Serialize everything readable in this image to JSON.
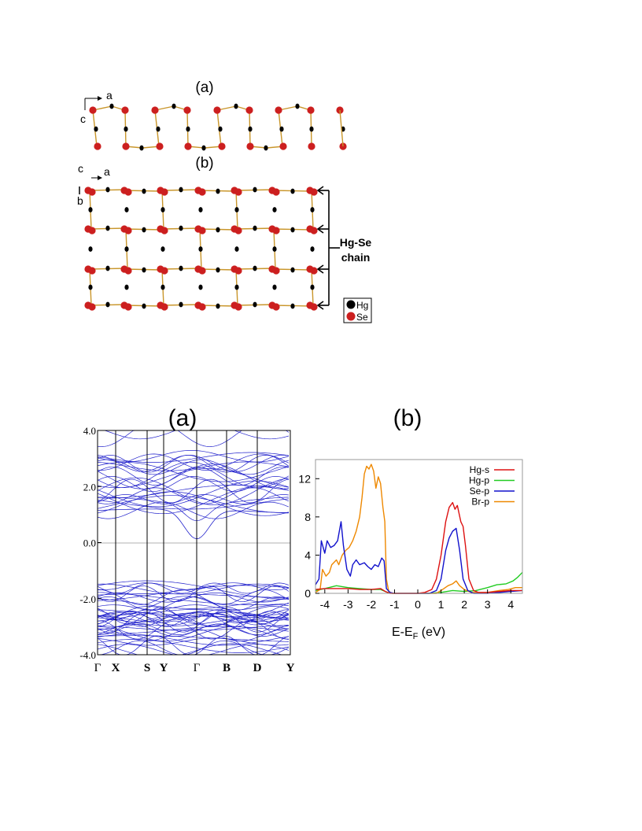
{
  "colors": {
    "hg_atom": "#000000",
    "se_atom": "#cc1f1f",
    "bond": "#c9962b",
    "band_line": "#2222cc"
  },
  "structure_figure": {
    "panel_a_label": "(a)",
    "panel_b_label": "(b)",
    "axes_a": {
      "horizontal": "a",
      "vertical": "c"
    },
    "axes_b": {
      "out_of_plane": "c",
      "horizontal": "a",
      "vertical": "b"
    },
    "chain_annotation_line1": "Hg-Se",
    "chain_annotation_line2": "chain",
    "legend": [
      {
        "label": "Hg",
        "color": "#000000"
      },
      {
        "label": "Se",
        "color": "#cc1f1f"
      }
    ]
  },
  "chart_data": [
    {
      "type": "line",
      "title": "(a)",
      "ylim": [
        -4.0,
        4.0
      ],
      "y_ticks": [
        "4.0",
        "2.0",
        "0.0",
        "-2.0",
        "-4.0"
      ],
      "x_ticks": [
        "Γ",
        "X",
        "S",
        "Y",
        "Γ",
        "B",
        "D",
        "Y"
      ],
      "fermi_level": 0.0,
      "conduction_band_range": [
        0.0,
        4.0
      ],
      "valence_band_range": [
        -4.0,
        -1.4
      ],
      "grid": false
    },
    {
      "type": "line",
      "title": "(b)",
      "xlabel": "E-E",
      "xlabel_sub": "F",
      "xlabel_unit": " (eV)",
      "xlim": [
        -4.4,
        4.5
      ],
      "ylim": [
        0,
        14
      ],
      "x_ticks": [
        "-4",
        "-3",
        "-2",
        "-1",
        "0",
        "1",
        "2",
        "3",
        "4"
      ],
      "y_ticks": [
        "0",
        "4",
        "8",
        "12"
      ],
      "legend_position": "top-right",
      "series": [
        {
          "name": "Hg-s",
          "color": "#dd1111",
          "points": [
            [
              -4.4,
              0.4
            ],
            [
              -4.0,
              0.5
            ],
            [
              -3.5,
              0.5
            ],
            [
              -3.0,
              0.5
            ],
            [
              -2.5,
              0.4
            ],
            [
              -2.0,
              0.4
            ],
            [
              -1.6,
              0.5
            ],
            [
              -1.4,
              0.2
            ],
            [
              -1.2,
              0.0
            ],
            [
              0.0,
              0.0
            ],
            [
              0.3,
              0.1
            ],
            [
              0.6,
              0.4
            ],
            [
              0.8,
              1.5
            ],
            [
              1.0,
              4.0
            ],
            [
              1.2,
              7.5
            ],
            [
              1.35,
              9.0
            ],
            [
              1.5,
              9.5
            ],
            [
              1.6,
              8.8
            ],
            [
              1.7,
              9.2
            ],
            [
              1.85,
              7.5
            ],
            [
              1.95,
              7.0
            ],
            [
              2.05,
              5.0
            ],
            [
              2.2,
              1.5
            ],
            [
              2.4,
              0.3
            ],
            [
              2.6,
              0.1
            ],
            [
              3.0,
              0.1
            ],
            [
              3.5,
              0.2
            ],
            [
              4.0,
              0.3
            ],
            [
              4.5,
              0.3
            ]
          ]
        },
        {
          "name": "Hg-p",
          "color": "#22cc22",
          "points": [
            [
              -4.4,
              0.3
            ],
            [
              -4.0,
              0.5
            ],
            [
              -3.5,
              0.8
            ],
            [
              -3.0,
              0.6
            ],
            [
              -2.5,
              0.5
            ],
            [
              -2.0,
              0.4
            ],
            [
              -1.6,
              0.4
            ],
            [
              -1.3,
              0.1
            ],
            [
              -1.1,
              0.0
            ],
            [
              0.5,
              0.0
            ],
            [
              1.0,
              0.1
            ],
            [
              1.5,
              0.3
            ],
            [
              2.0,
              0.2
            ],
            [
              2.5,
              0.3
            ],
            [
              3.0,
              0.6
            ],
            [
              3.4,
              0.9
            ],
            [
              3.8,
              1.0
            ],
            [
              4.1,
              1.3
            ],
            [
              4.3,
              1.7
            ],
            [
              4.5,
              2.2
            ]
          ]
        },
        {
          "name": "Se-p",
          "color": "#1111cc",
          "points": [
            [
              -4.4,
              0.9
            ],
            [
              -4.25,
              1.5
            ],
            [
              -4.15,
              5.5
            ],
            [
              -4.0,
              4.2
            ],
            [
              -3.9,
              5.5
            ],
            [
              -3.75,
              4.8
            ],
            [
              -3.6,
              5.0
            ],
            [
              -3.45,
              5.5
            ],
            [
              -3.3,
              7.5
            ],
            [
              -3.2,
              5.0
            ],
            [
              -3.05,
              2.5
            ],
            [
              -2.9,
              1.8
            ],
            [
              -2.8,
              3.0
            ],
            [
              -2.65,
              3.5
            ],
            [
              -2.5,
              3.0
            ],
            [
              -2.3,
              3.2
            ],
            [
              -2.15,
              2.8
            ],
            [
              -2.0,
              2.5
            ],
            [
              -1.85,
              3.0
            ],
            [
              -1.7,
              2.8
            ],
            [
              -1.55,
              3.7
            ],
            [
              -1.45,
              3.4
            ],
            [
              -1.35,
              0.5
            ],
            [
              -1.2,
              0.1
            ],
            [
              -1.0,
              0.0
            ],
            [
              0.5,
              0.0
            ],
            [
              0.8,
              0.3
            ],
            [
              1.0,
              1.5
            ],
            [
              1.2,
              4.5
            ],
            [
              1.35,
              5.8
            ],
            [
              1.5,
              6.5
            ],
            [
              1.65,
              6.8
            ],
            [
              1.8,
              4.5
            ],
            [
              1.95,
              1.5
            ],
            [
              2.15,
              0.3
            ],
            [
              2.4,
              0.0
            ],
            [
              3.0,
              0.0
            ],
            [
              3.5,
              0.1
            ],
            [
              4.0,
              0.2
            ],
            [
              4.5,
              0.3
            ]
          ]
        },
        {
          "name": "Br-p",
          "color": "#ee8800",
          "points": [
            [
              -4.4,
              0.1
            ],
            [
              -4.2,
              0.4
            ],
            [
              -4.1,
              2.5
            ],
            [
              -3.95,
              1.8
            ],
            [
              -3.8,
              2.2
            ],
            [
              -3.7,
              3.0
            ],
            [
              -3.5,
              3.5
            ],
            [
              -3.4,
              3.0
            ],
            [
              -3.25,
              4.0
            ],
            [
              -3.1,
              4.5
            ],
            [
              -2.95,
              4.8
            ],
            [
              -2.8,
              5.5
            ],
            [
              -2.65,
              6.5
            ],
            [
              -2.5,
              8.0
            ],
            [
              -2.4,
              10.0
            ],
            [
              -2.3,
              12.5
            ],
            [
              -2.2,
              13.3
            ],
            [
              -2.1,
              13.0
            ],
            [
              -2.0,
              13.5
            ],
            [
              -1.9,
              12.8
            ],
            [
              -1.8,
              11.0
            ],
            [
              -1.7,
              12.2
            ],
            [
              -1.6,
              11.5
            ],
            [
              -1.5,
              9.0
            ],
            [
              -1.42,
              7.5
            ],
            [
              -1.35,
              1.5
            ],
            [
              -1.25,
              0.2
            ],
            [
              -1.1,
              0.0
            ],
            [
              0.8,
              0.0
            ],
            [
              1.0,
              0.3
            ],
            [
              1.3,
              0.8
            ],
            [
              1.5,
              1.0
            ],
            [
              1.65,
              1.3
            ],
            [
              1.8,
              0.8
            ],
            [
              2.0,
              0.4
            ],
            [
              2.3,
              0.1
            ],
            [
              3.0,
              0.1
            ],
            [
              3.5,
              0.3
            ],
            [
              3.9,
              0.4
            ],
            [
              4.2,
              0.6
            ],
            [
              4.5,
              0.6
            ]
          ]
        }
      ]
    }
  ]
}
